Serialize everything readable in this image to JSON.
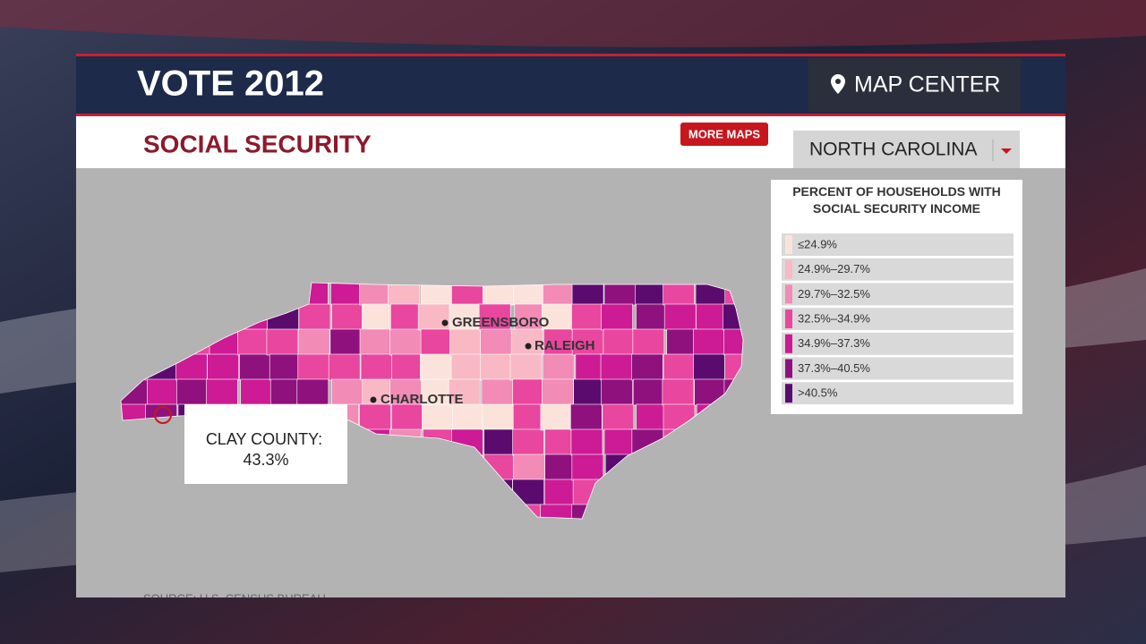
{
  "header": {
    "title": "VOTE 2012",
    "nav_button": "MAP CENTER"
  },
  "topic": {
    "title": "SOCIAL SECURITY",
    "more_button": "MORE MAPS",
    "state_selector": "NORTH CAROLINA"
  },
  "legend": {
    "title": "PERCENT OF HOUSEHOLDS WITH SOCIAL SECURITY INCOME",
    "items": [
      {
        "label": "≤24.9%",
        "color": "#fbe3dc"
      },
      {
        "label": "24.9%–29.7%",
        "color": "#f8b8c4"
      },
      {
        "label": "29.7%–32.5%",
        "color": "#f28bb6"
      },
      {
        "label": "32.5%–34.9%",
        "color": "#e8469f"
      },
      {
        "label": "34.9%–37.3%",
        "color": "#cc1b94"
      },
      {
        "label": "37.3%–40.5%",
        "color": "#8f117e"
      },
      {
        "label": ">40.5%",
        "color": "#5b0b6e"
      }
    ]
  },
  "map": {
    "cities": [
      "GREENSBORO",
      "RALEIGH",
      "CHARLOTTE"
    ],
    "tooltip": {
      "name": "CLAY COUNTY:",
      "value": "43.3%"
    },
    "source": "SOURCE: U.S. CENSUS BUREAU"
  }
}
